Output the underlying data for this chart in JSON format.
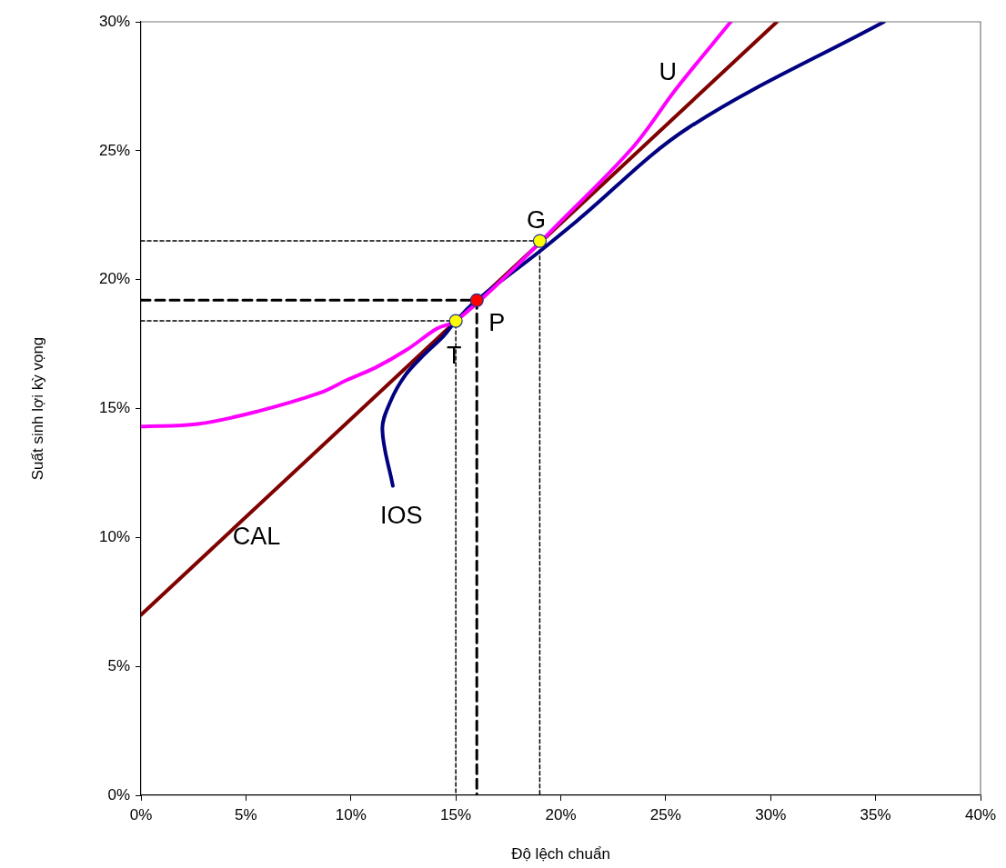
{
  "chart_data": {
    "type": "line",
    "xlabel": "Độ lệch chuẩn",
    "ylabel": "Suất sinh lợi kỳ vọng",
    "xlim": [
      0,
      40
    ],
    "ylim": [
      0,
      30
    ],
    "xticks": [
      {
        "value": 0,
        "label": "0%"
      },
      {
        "value": 5,
        "label": "5%"
      },
      {
        "value": 10,
        "label": "10%"
      },
      {
        "value": 15,
        "label": "15%"
      },
      {
        "value": 20,
        "label": "20%"
      },
      {
        "value": 25,
        "label": "25%"
      },
      {
        "value": 30,
        "label": "30%"
      },
      {
        "value": 35,
        "label": "35%"
      },
      {
        "value": 40,
        "label": "40%"
      }
    ],
    "yticks": [
      {
        "value": 0,
        "label": "0%"
      },
      {
        "value": 5,
        "label": "5%"
      },
      {
        "value": 10,
        "label": "10%"
      },
      {
        "value": 15,
        "label": "15%"
      },
      {
        "value": 20,
        "label": "20%"
      },
      {
        "value": 25,
        "label": "25%"
      },
      {
        "value": 30,
        "label": "30%"
      }
    ],
    "grid": false,
    "legend": false,
    "series": [
      {
        "type": "line",
        "color": "#000000",
        "line_style": "dotted",
        "marker": "none",
        "x": [
          0,
          15,
          15
        ],
        "values": [
          18.4,
          18.4,
          0
        ]
      },
      {
        "type": "line",
        "color": "#000000",
        "line_style": "dotted",
        "marker": "none",
        "x": [
          0,
          19,
          19
        ],
        "values": [
          21.5,
          21.5,
          0
        ]
      },
      {
        "type": "line",
        "color": "#000000",
        "line_style": "dashed",
        "marker": "none",
        "x": [
          0,
          16,
          16
        ],
        "values": [
          19.2,
          19.2,
          0
        ]
      },
      {
        "type": "line",
        "color": "#800000",
        "line_style": "solid",
        "marker": "none",
        "x": [
          0,
          30.3
        ],
        "values": [
          7,
          30
        ]
      },
      {
        "type": "line",
        "color": "#000080",
        "line_style": "solid",
        "marker": "none",
        "x": [
          12,
          11.5,
          11.9,
          12.6,
          13.5,
          14.4,
          15,
          16,
          19,
          20.8,
          26.1,
          35.4
        ],
        "values": [
          12,
          14.2,
          15.3,
          16.3,
          17.1,
          17.8,
          18.4,
          19.2,
          21.1,
          22.3,
          25.9,
          30
        ]
      },
      {
        "type": "line",
        "color": "#ff00ff",
        "line_style": "solid",
        "marker": "none",
        "x": [
          0,
          2.7,
          5.6,
          8.5,
          9.8,
          11.2,
          12.7,
          14.1,
          15,
          17.6,
          19.8,
          23.4,
          25.5,
          28.1
        ],
        "values": [
          14.3,
          14.4,
          14.9,
          15.6,
          16.1,
          16.6,
          17.3,
          18.1,
          18.4,
          20.3,
          22.1,
          25.1,
          27.4,
          30
        ]
      },
      {
        "type": "scatter",
        "marker": "circle",
        "colors": [
          "#ffff00",
          "#ff0000",
          "#ffff00"
        ],
        "x": [
          15,
          16,
          19
        ],
        "values": [
          18.4,
          19.2,
          21.5
        ],
        "value_labels": [
          "T",
          "P",
          "G"
        ]
      }
    ],
    "annotations": [
      "U",
      "CAL",
      "IOS"
    ]
  }
}
